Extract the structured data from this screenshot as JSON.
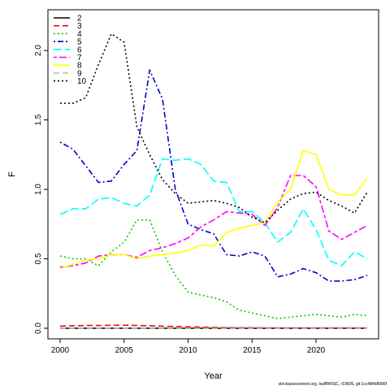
{
  "chart_data": {
    "type": "line",
    "xlabel": "Year",
    "ylabel": "F",
    "xlim": [
      2000,
      2024
    ],
    "ylim": [
      0.0,
      2.2
    ],
    "x_ticks": [
      2000,
      2005,
      2010,
      2015,
      2020
    ],
    "y_ticks": [
      0.0,
      0.5,
      1.0,
      1.5,
      2.0
    ],
    "y_tick_labels": [
      "0.0",
      "0.5",
      "1.0",
      "1.5",
      "2.0"
    ],
    "grid": false,
    "legend_position": "top-left",
    "x": [
      2000,
      2001,
      2002,
      2003,
      2004,
      2005,
      2006,
      2007,
      2008,
      2009,
      2010,
      2011,
      2012,
      2013,
      2014,
      2015,
      2016,
      2017,
      2018,
      2019,
      2020,
      2021,
      2022,
      2023,
      2024
    ],
    "series": [
      {
        "name": "2",
        "color": "#000000",
        "dash": "solid",
        "values": [
          0.0,
          0.0,
          0.0,
          0.0,
          0.0,
          0.0,
          0.0,
          0.0,
          0.0,
          0.0,
          0.0,
          0.0,
          0.0,
          0.0,
          0.0,
          0.0,
          0.0,
          0.0,
          0.0,
          0.0,
          0.0,
          0.0,
          0.0,
          0.0,
          0.0
        ]
      },
      {
        "name": "3",
        "color": "#ff0000",
        "dash": "long",
        "values": [
          0.015,
          0.018,
          0.02,
          0.02,
          0.022,
          0.022,
          0.02,
          0.018,
          0.015,
          0.012,
          0.01,
          0.008,
          0.006,
          0.005,
          0.004,
          0.004,
          0.003,
          0.003,
          0.003,
          0.003,
          0.003,
          0.003,
          0.003,
          0.003,
          0.003
        ]
      },
      {
        "name": "4",
        "color": "#00cd00",
        "dash": "dot",
        "values": [
          0.52,
          0.5,
          0.5,
          0.45,
          0.55,
          0.62,
          0.78,
          0.78,
          0.55,
          0.38,
          0.26,
          0.24,
          0.22,
          0.19,
          0.13,
          0.11,
          0.09,
          0.07,
          0.08,
          0.09,
          0.1,
          0.09,
          0.08,
          0.1,
          0.09
        ]
      },
      {
        "name": "5",
        "color": "#0000cd",
        "dash": "dashdot",
        "values": [
          1.34,
          1.29,
          1.17,
          1.05,
          1.06,
          1.18,
          1.28,
          1.86,
          1.65,
          1.0,
          0.75,
          0.71,
          0.68,
          0.53,
          0.52,
          0.55,
          0.52,
          0.37,
          0.39,
          0.43,
          0.4,
          0.34,
          0.34,
          0.35,
          0.38
        ]
      },
      {
        "name": "6",
        "color": "#00ffff",
        "dash": "longdash",
        "values": [
          0.82,
          0.86,
          0.86,
          0.93,
          0.94,
          0.9,
          0.88,
          0.96,
          1.22,
          1.21,
          1.22,
          1.18,
          1.06,
          1.05,
          0.84,
          0.84,
          0.76,
          0.62,
          0.69,
          0.86,
          0.71,
          0.49,
          0.45,
          0.55,
          0.5
        ]
      },
      {
        "name": "7",
        "color": "#ff00ff",
        "dash": "twodash",
        "values": [
          0.44,
          0.45,
          0.47,
          0.52,
          0.53,
          0.53,
          0.51,
          0.56,
          0.58,
          0.61,
          0.65,
          0.73,
          0.78,
          0.84,
          0.83,
          0.82,
          0.74,
          0.87,
          1.1,
          1.1,
          1.02,
          0.7,
          0.64,
          0.69,
          0.74
        ]
      },
      {
        "name": "8",
        "color": "#ffff00",
        "dash": "solid",
        "values": [
          0.43,
          0.46,
          0.49,
          0.5,
          0.53,
          0.53,
          0.5,
          0.52,
          0.53,
          0.54,
          0.56,
          0.6,
          0.59,
          0.69,
          0.72,
          0.74,
          0.76,
          0.91,
          1.0,
          1.28,
          1.25,
          1.0,
          0.96,
          0.96,
          1.08
        ]
      },
      {
        "name": "9",
        "color": "#bebebe",
        "dash": "long",
        "values": [
          0.0,
          0.0,
          0.0,
          0.0,
          0.0,
          0.0,
          0.0,
          0.0,
          0.0,
          0.0,
          0.0,
          0.0,
          0.0,
          0.0,
          0.0,
          0.0,
          0.0,
          0.0,
          0.0,
          0.0,
          0.0,
          0.0,
          0.0,
          0.0,
          0.0
        ]
      },
      {
        "name": "10",
        "color": "#000000",
        "dash": "dot",
        "values": [
          1.62,
          1.62,
          1.66,
          1.9,
          2.12,
          2.06,
          1.45,
          1.25,
          1.07,
          0.97,
          0.9,
          0.91,
          0.92,
          0.9,
          0.87,
          0.8,
          0.76,
          0.85,
          0.93,
          0.97,
          0.98,
          0.92,
          0.88,
          0.83,
          0.98
        ]
      }
    ]
  },
  "footer": "stockassessment.org, leafBWISC, r19605, git:1cc484b8086f"
}
